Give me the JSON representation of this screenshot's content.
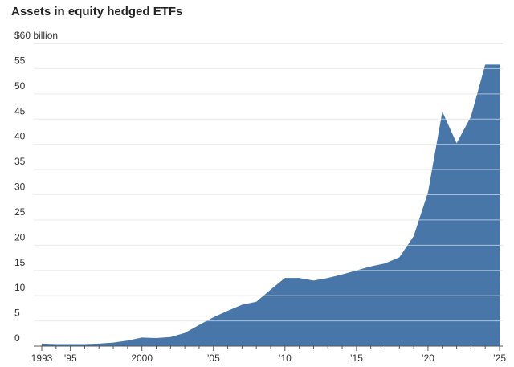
{
  "chart_data": {
    "type": "area",
    "title": "Assets in equity hedged ETFs",
    "unit_label": "$60 billion",
    "xlabel": "",
    "ylabel": "",
    "ylim": [
      0,
      60
    ],
    "xlim": [
      1993,
      2025
    ],
    "y_ticks": [
      {
        "value": 60,
        "label": "$60 billion"
      },
      {
        "value": 55,
        "label": "55"
      },
      {
        "value": 50,
        "label": "50"
      },
      {
        "value": 45,
        "label": "45"
      },
      {
        "value": 40,
        "label": "40"
      },
      {
        "value": 35,
        "label": "35"
      },
      {
        "value": 30,
        "label": "30"
      },
      {
        "value": 25,
        "label": "25"
      },
      {
        "value": 20,
        "label": "20"
      },
      {
        "value": 15,
        "label": "15"
      },
      {
        "value": 10,
        "label": "10"
      },
      {
        "value": 5,
        "label": "5"
      },
      {
        "value": 0,
        "label": "0"
      }
    ],
    "x_ticks": [
      {
        "value": 1993,
        "label": "1993"
      },
      {
        "value": 1995,
        "label": "’95"
      },
      {
        "value": 2000,
        "label": "2000"
      },
      {
        "value": 2005,
        "label": "’05"
      },
      {
        "value": 2010,
        "label": "’10"
      },
      {
        "value": 2015,
        "label": "’15"
      },
      {
        "value": 2020,
        "label": "’20"
      },
      {
        "value": 2025,
        "label": "’25"
      }
    ],
    "grid": true,
    "colors": {
      "area": "#4876a8",
      "grid": "#d9d9d9",
      "axis": "#555555"
    },
    "series": [
      {
        "x": [
          1993,
          1994,
          1995,
          1996,
          1997,
          1998,
          1999,
          2000,
          2001,
          2002,
          2003,
          2004,
          2005,
          2006,
          2007,
          2008,
          2009,
          2010,
          2011,
          2012,
          2013,
          2014,
          2015,
          2016,
          2017,
          2018,
          2019,
          2020,
          2021,
          2022,
          2023,
          2024,
          2025
        ],
        "values": [
          0.5,
          0.4,
          0.4,
          0.4,
          0.5,
          0.7,
          1.1,
          1.7,
          1.6,
          1.8,
          2.6,
          4.2,
          5.7,
          7.0,
          8.2,
          8.8,
          11.2,
          13.5,
          13.5,
          13.0,
          13.5,
          14.2,
          15.0,
          15.8,
          16.4,
          17.6,
          21.8,
          30.5,
          46.5,
          40.2,
          45.5,
          55.8,
          55.8
        ]
      }
    ]
  }
}
